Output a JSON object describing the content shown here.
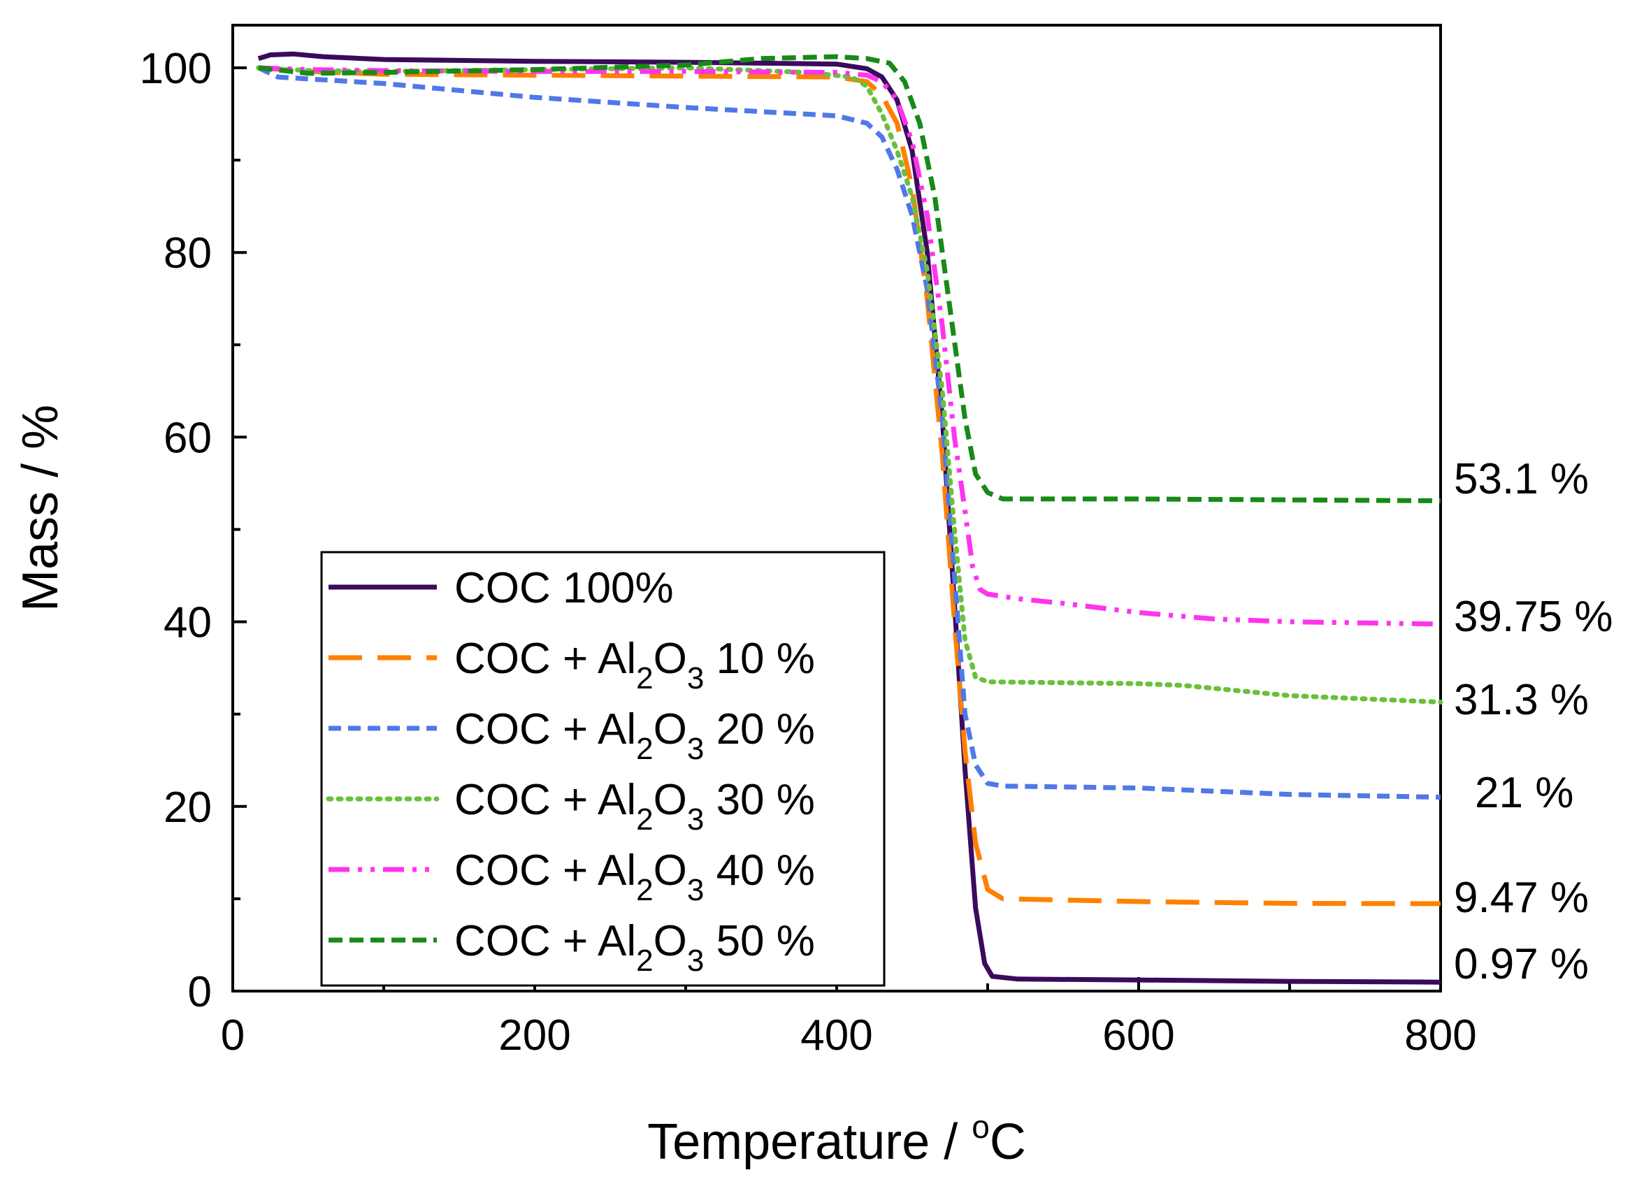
{
  "chart_data": {
    "type": "line",
    "title": "",
    "xlabel": "Temperature / ",
    "xlabel_sup": "o",
    "xlabel_unit": "C",
    "ylabel": "Mass / %",
    "xlim": [
      0,
      800
    ],
    "ylim": [
      0,
      105
    ],
    "xticks": [
      0,
      200,
      400,
      600,
      800
    ],
    "yticks": [
      0,
      20,
      40,
      60,
      80,
      100
    ],
    "grid": false,
    "legend_position": "lower-left",
    "series": [
      {
        "name": "COC 100%",
        "legend": {
          "prefix": "COC 100%",
          "sub1": "",
          "mid": "",
          "sub2": "",
          "suffix": ""
        },
        "color": "#3b0a5c",
        "dash": "solid",
        "end_label": "0.97 %",
        "points": [
          [
            17,
            101.0
          ],
          [
            25,
            101.4
          ],
          [
            40,
            101.5
          ],
          [
            60,
            101.2
          ],
          [
            100,
            100.9
          ],
          [
            200,
            100.7
          ],
          [
            300,
            100.6
          ],
          [
            400,
            100.4
          ],
          [
            420,
            99.9
          ],
          [
            430,
            99.0
          ],
          [
            440,
            96.5
          ],
          [
            450,
            91.0
          ],
          [
            460,
            80.0
          ],
          [
            470,
            62.0
          ],
          [
            478,
            42.0
          ],
          [
            485,
            24.0
          ],
          [
            492,
            9.0
          ],
          [
            498,
            3.0
          ],
          [
            503,
            1.6
          ],
          [
            520,
            1.3
          ],
          [
            600,
            1.2
          ],
          [
            700,
            1.05
          ],
          [
            800,
            0.97
          ]
        ]
      },
      {
        "name": "COC + Al2O3 10 %",
        "legend": {
          "prefix": "COC + Al",
          "sub1": "2",
          "mid": "O",
          "sub2": "3",
          "suffix": " 10 %"
        },
        "color": "#ff8000",
        "dash": "longdash",
        "end_label": "9.47 %",
        "points": [
          [
            17,
            100.0
          ],
          [
            50,
            99.6
          ],
          [
            100,
            99.3
          ],
          [
            200,
            99.2
          ],
          [
            300,
            99.1
          ],
          [
            400,
            99.0
          ],
          [
            420,
            98.5
          ],
          [
            430,
            97.0
          ],
          [
            440,
            94.0
          ],
          [
            450,
            87.0
          ],
          [
            460,
            75.0
          ],
          [
            470,
            58.0
          ],
          [
            478,
            40.0
          ],
          [
            485,
            26.0
          ],
          [
            492,
            16.0
          ],
          [
            500,
            11.0
          ],
          [
            510,
            10.0
          ],
          [
            600,
            9.7
          ],
          [
            700,
            9.5
          ],
          [
            800,
            9.47
          ]
        ]
      },
      {
        "name": "COC + Al2O3 20 %",
        "legend": {
          "prefix": "COC + Al",
          "sub1": "2",
          "mid": "O",
          "sub2": "3",
          "suffix": " 20 %"
        },
        "color": "#4f78e8",
        "dash": "shortdash",
        "end_label": "21 %",
        "points": [
          [
            17,
            100.0
          ],
          [
            30,
            99.0
          ],
          [
            100,
            98.3
          ],
          [
            200,
            96.8
          ],
          [
            300,
            95.7
          ],
          [
            400,
            94.8
          ],
          [
            420,
            94.0
          ],
          [
            430,
            92.5
          ],
          [
            440,
            89.0
          ],
          [
            450,
            84.0
          ],
          [
            460,
            76.0
          ],
          [
            470,
            62.0
          ],
          [
            478,
            45.0
          ],
          [
            485,
            30.0
          ],
          [
            492,
            24.5
          ],
          [
            500,
            22.5
          ],
          [
            510,
            22.2
          ],
          [
            600,
            22.0
          ],
          [
            700,
            21.3
          ],
          [
            800,
            21.0
          ]
        ]
      },
      {
        "name": "COC + Al2O3 30 %",
        "legend": {
          "prefix": "COC + Al",
          "sub1": "2",
          "mid": "O",
          "sub2": "3",
          "suffix": " 30 %"
        },
        "color": "#6ac03a",
        "dash": "dot",
        "end_label": "31.3 %",
        "points": [
          [
            17,
            100.0
          ],
          [
            50,
            99.7
          ],
          [
            100,
            99.6
          ],
          [
            200,
            99.8
          ],
          [
            300,
            100.0
          ],
          [
            380,
            99.5
          ],
          [
            410,
            99.0
          ],
          [
            420,
            98.0
          ],
          [
            430,
            95.0
          ],
          [
            440,
            91.0
          ],
          [
            450,
            86.0
          ],
          [
            460,
            78.0
          ],
          [
            470,
            65.0
          ],
          [
            478,
            50.0
          ],
          [
            485,
            38.0
          ],
          [
            492,
            34.0
          ],
          [
            500,
            33.5
          ],
          [
            600,
            33.3
          ],
          [
            630,
            33.1
          ],
          [
            700,
            32.0
          ],
          [
            800,
            31.3
          ]
        ]
      },
      {
        "name": "COC + Al2O3 40 %",
        "legend": {
          "prefix": "COC + Al",
          "sub1": "2",
          "mid": "O",
          "sub2": "3",
          "suffix": " 40 %"
        },
        "color": "#ff33ee",
        "dash": "dashdotdot",
        "end_label": "39.75 %",
        "points": [
          [
            17,
            100.0
          ],
          [
            50,
            99.8
          ],
          [
            100,
            99.7
          ],
          [
            200,
            99.6
          ],
          [
            300,
            99.6
          ],
          [
            400,
            99.5
          ],
          [
            420,
            99.2
          ],
          [
            430,
            98.5
          ],
          [
            440,
            96.5
          ],
          [
            450,
            92.0
          ],
          [
            460,
            84.0
          ],
          [
            470,
            72.0
          ],
          [
            478,
            60.0
          ],
          [
            485,
            52.0
          ],
          [
            490,
            46.0
          ],
          [
            495,
            43.5
          ],
          [
            500,
            43.0
          ],
          [
            520,
            42.5
          ],
          [
            550,
            42.0
          ],
          [
            600,
            41.0
          ],
          [
            650,
            40.3
          ],
          [
            700,
            40.0
          ],
          [
            800,
            39.75
          ]
        ]
      },
      {
        "name": "COC + Al2O3 50 %",
        "legend": {
          "prefix": "COC + Al",
          "sub1": "2",
          "mid": "O",
          "sub2": "3",
          "suffix": " 50 %"
        },
        "color": "#178a17",
        "dash": "dash",
        "end_label": "53.1 %",
        "points": [
          [
            17,
            100.0
          ],
          [
            50,
            99.4
          ],
          [
            100,
            99.5
          ],
          [
            200,
            99.8
          ],
          [
            300,
            100.3
          ],
          [
            350,
            101.0
          ],
          [
            400,
            101.2
          ],
          [
            420,
            101.0
          ],
          [
            435,
            100.5
          ],
          [
            445,
            98.5
          ],
          [
            455,
            94.0
          ],
          [
            465,
            86.0
          ],
          [
            475,
            74.0
          ],
          [
            485,
            62.0
          ],
          [
            492,
            56.0
          ],
          [
            500,
            54.0
          ],
          [
            510,
            53.3
          ],
          [
            600,
            53.3
          ],
          [
            700,
            53.2
          ],
          [
            800,
            53.1
          ]
        ]
      }
    ]
  }
}
